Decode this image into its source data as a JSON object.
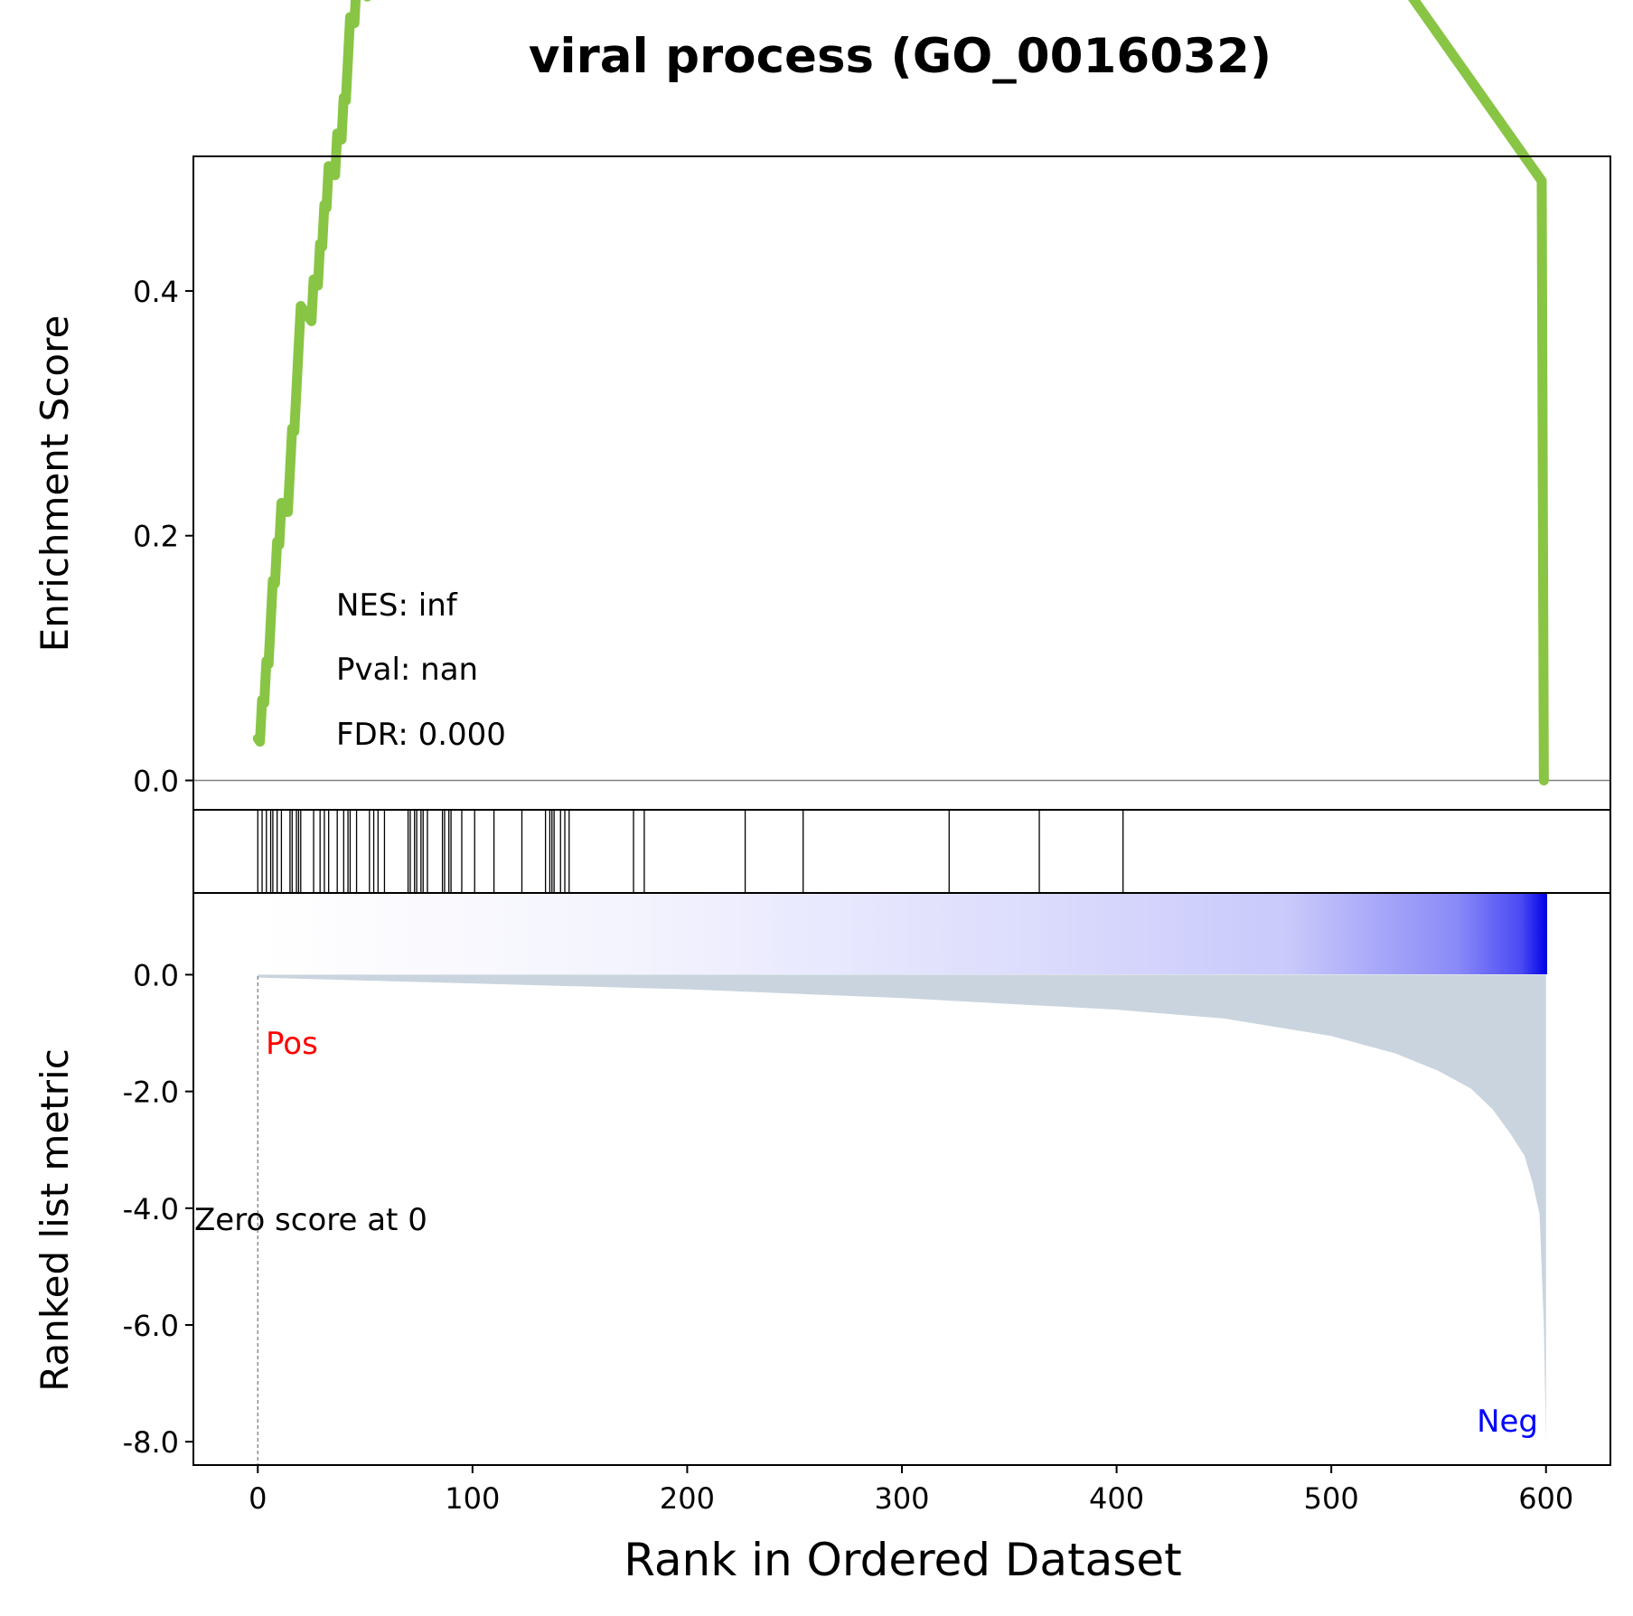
{
  "chart_data": {
    "type": "gsea_enrichment_plot",
    "title": "viral process (GO_0016032)",
    "xlabel": "Rank in Ordered Dataset",
    "xlim": [
      -30,
      630
    ],
    "xticks": [
      0,
      100,
      200,
      300,
      400,
      500,
      600
    ],
    "x_tick_labels": [
      "0",
      "100",
      "200",
      "300",
      "400",
      "500",
      "600"
    ],
    "n_genes": 600,
    "enrichment_panel": {
      "ylabel": "Enrichment Score",
      "ylim": [
        -0.024,
        0.51
      ],
      "yticks": [
        0.0,
        0.2,
        0.4
      ],
      "y_tick_labels": [
        "0.0",
        "0.2",
        "0.4"
      ],
      "line_color": "#88c544",
      "stats": {
        "nes": "NES: inf",
        "pval": "Pval: nan",
        "fdr": "FDR: 0.000"
      }
    },
    "hit_positions": [
      0,
      2,
      4,
      6,
      7,
      9,
      11,
      15,
      16,
      18,
      19,
      20,
      26,
      29,
      31,
      33,
      37,
      40,
      42,
      43,
      46,
      52,
      54,
      56,
      59,
      70,
      71,
      73,
      74,
      76,
      77,
      79,
      86,
      87,
      89,
      90,
      95,
      101,
      110,
      123,
      134,
      136,
      137,
      138,
      141,
      143,
      145,
      175,
      180,
      227,
      254,
      322,
      364,
      403
    ],
    "ranked_metric_panel": {
      "ylabel": "Ranked list metric",
      "ylim": [
        -8.4,
        1.4
      ],
      "yticks": [
        0.0,
        -2.0,
        -4.0,
        -6.0,
        -8.0
      ],
      "y_tick_labels": [
        "0.0",
        "-2.0",
        "-4.0",
        "-6.0",
        "-8.0"
      ],
      "fill_color": "#c9d4de",
      "metric_points": [
        {
          "rank": 0,
          "value": -0.05
        },
        {
          "rank": 100,
          "value": -0.15
        },
        {
          "rank": 200,
          "value": -0.25
        },
        {
          "rank": 300,
          "value": -0.4
        },
        {
          "rank": 400,
          "value": -0.6
        },
        {
          "rank": 450,
          "value": -0.75
        },
        {
          "rank": 500,
          "value": -1.05
        },
        {
          "rank": 530,
          "value": -1.35
        },
        {
          "rank": 550,
          "value": -1.65
        },
        {
          "rank": 565,
          "value": -1.95
        },
        {
          "rank": 575,
          "value": -2.3
        },
        {
          "rank": 583,
          "value": -2.7
        },
        {
          "rank": 590,
          "value": -3.1
        },
        {
          "rank": 594,
          "value": -3.6
        },
        {
          "rank": 597,
          "value": -4.1
        },
        {
          "rank": 599,
          "value": -6.0
        },
        {
          "rank": 600,
          "value": -8.0
        }
      ],
      "pos_label": "Pos",
      "neg_label": "Neg",
      "pos_color": "#ff0000",
      "neg_color": "#0000ff",
      "zero_score_label": "Zero score at 0",
      "zero_rank": 0
    }
  }
}
